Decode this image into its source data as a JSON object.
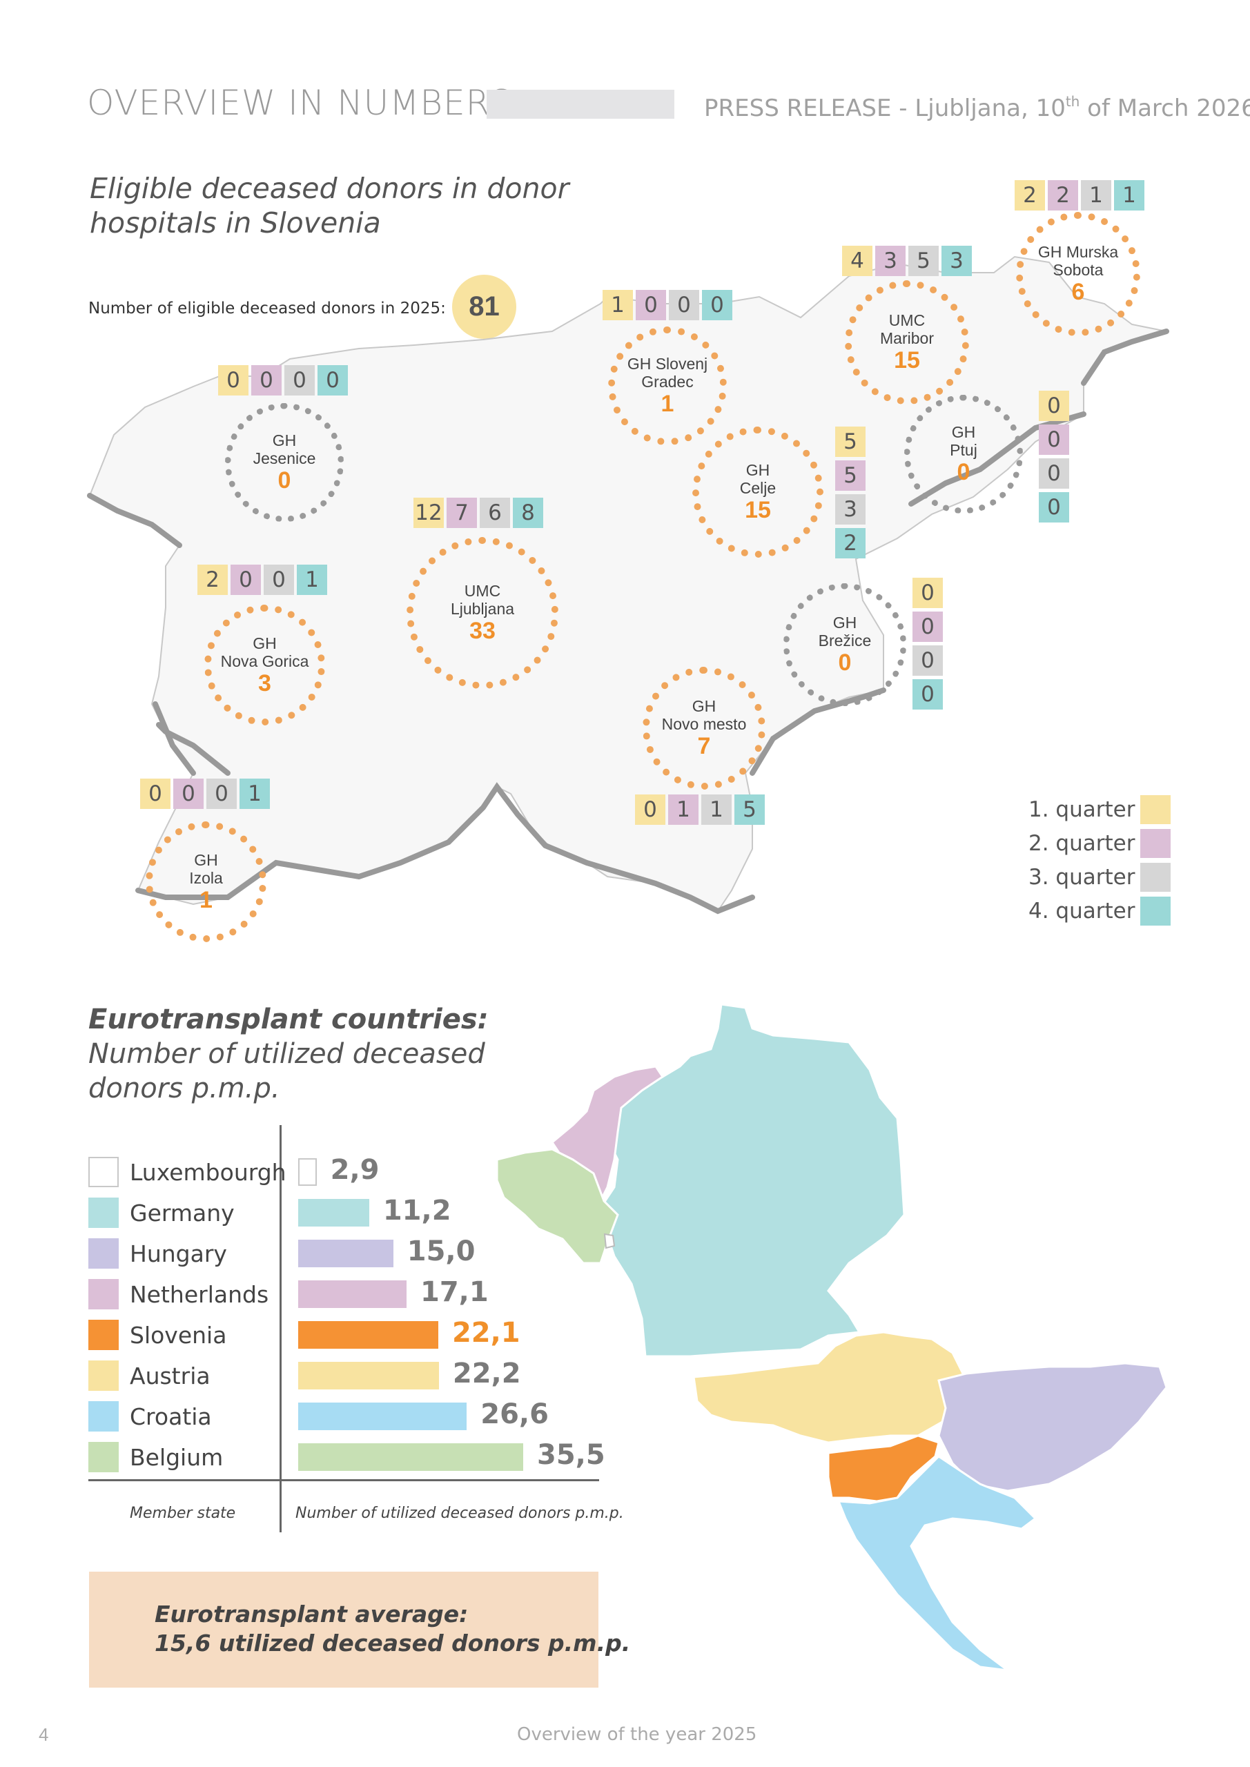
{
  "header": {
    "title": "OVERVIEW IN NUMBERS",
    "release_text": "PRESS RELEASE - Ljubljana, 10",
    "release_sup": "th",
    "release_tail": " of March 2026"
  },
  "donors_section": {
    "title_line1": "Eligible deceased donors in donor",
    "title_line2": "hospitals in Slovenia",
    "count_label": "Number of eligible deceased donors in 2025:",
    "count_value": "81",
    "hospitals": [
      {
        "name1": "GH",
        "name2": "Jesenice",
        "value": "0",
        "quarters": [
          "0",
          "0",
          "0",
          "0"
        ]
      },
      {
        "name1": "GH Slovenj",
        "name2": "Gradec",
        "value": "1",
        "quarters": [
          "1",
          "0",
          "0",
          "0"
        ]
      },
      {
        "name1": "UMC",
        "name2": "Maribor",
        "value": "15",
        "quarters": [
          "4",
          "3",
          "5",
          "3"
        ]
      },
      {
        "name1": "GH Murska",
        "name2": "Sobota",
        "value": "6",
        "quarters": [
          "2",
          "2",
          "1",
          "1"
        ]
      },
      {
        "name1": "GH",
        "name2": "Ptuj",
        "value": "0",
        "quarters": [
          "0",
          "0",
          "0",
          "0"
        ]
      },
      {
        "name1": "GH",
        "name2": "Celje",
        "value": "15",
        "quarters": [
          "5",
          "5",
          "3",
          "2"
        ]
      },
      {
        "name1": "UMC",
        "name2": "Ljubljana",
        "value": "33",
        "quarters": [
          "12",
          "7",
          "6",
          "8"
        ]
      },
      {
        "name1": "GH",
        "name2": "Nova Gorica",
        "value": "3",
        "quarters": [
          "2",
          "0",
          "0",
          "1"
        ]
      },
      {
        "name1": "GH",
        "name2": "Brežice",
        "value": "0",
        "quarters": [
          "0",
          "0",
          "0",
          "0"
        ]
      },
      {
        "name1": "GH",
        "name2": "Novo mesto",
        "value": "7",
        "quarters": [
          "0",
          "1",
          "1",
          "5"
        ]
      },
      {
        "name1": "GH",
        "name2": "Izola",
        "value": "1",
        "quarters": [
          "0",
          "0",
          "0",
          "1"
        ]
      }
    ],
    "legend": [
      "1. quarter",
      "2. quarter",
      "3. quarter",
      "4. quarter"
    ],
    "colors": {
      "q1": "#f8e3a0",
      "q2": "#dcbfd7",
      "q3": "#d6d6d6",
      "q4": "#9ad8d7",
      "accent": "#f0902a"
    }
  },
  "eurotransplant_section": {
    "title_line1": "Eurotransplant countries:",
    "title_line2": "Number of utilized deceased",
    "title_line3": "donors p.m.p.",
    "axis_caption_left": "Member state",
    "axis_caption_right": "Number of utilized deceased donors p.m.p.",
    "average_line1": "Eurotransplant average:",
    "average_line2": "15,6 utilized deceased donors p.m.p."
  },
  "chart_data": {
    "type": "bar",
    "orientation": "horizontal",
    "categories": [
      "Luxembourgh",
      "Germany",
      "Hungary",
      "Netherlands",
      "Slovenia",
      "Austria",
      "Croatia",
      "Belgium"
    ],
    "values": [
      2.9,
      11.2,
      15.0,
      17.1,
      22.1,
      22.2,
      26.6,
      35.5
    ],
    "value_labels": [
      "2,9",
      "11,2",
      "15,0",
      "17,1",
      "22,1",
      "22,2",
      "26,6",
      "35,5"
    ],
    "colors": [
      "#ffffff",
      "#b2e0e1",
      "#c8c4e3",
      "#dcbfd7",
      "#f59234",
      "#f8e3a0",
      "#a7dcf3",
      "#c7e0b4"
    ],
    "highlight": "Slovenia",
    "xlim": [
      0,
      35.5
    ]
  },
  "footer": {
    "page_number": "4",
    "text": "Overview of the year 2025"
  }
}
